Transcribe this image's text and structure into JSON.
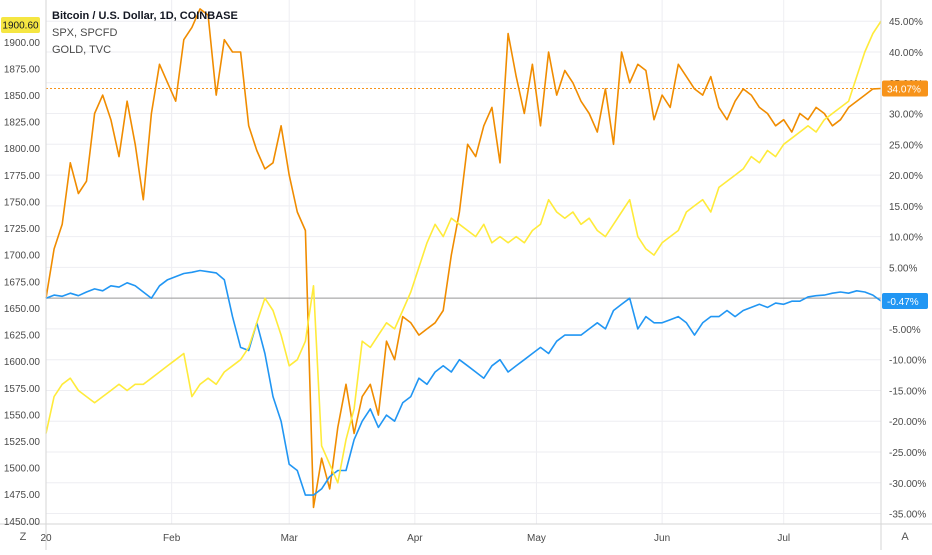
{
  "chart_data": {
    "type": "line",
    "legend": [
      "Bitcoin / U.S. Dollar, 1D, COINBASE",
      "SPX, SPCFD",
      "GOLD, TVC"
    ],
    "left_axis": {
      "ticks": [
        "1450.00",
        "1475.00",
        "1500.00",
        "1525.00",
        "1550.00",
        "1575.00",
        "1600.00",
        "1625.00",
        "1650.00",
        "1675.00",
        "1700.00",
        "1725.00",
        "1750.00",
        "1775.00",
        "1800.00",
        "1825.00",
        "1850.00",
        "1875.00",
        "1900.00"
      ],
      "range": [
        1447,
        1928
      ],
      "current_label": "1900.60",
      "current_color": "#f5e642"
    },
    "right_axis": {
      "ticks": [
        "45.00%",
        "40.00%",
        "35.00%",
        "30.00%",
        "25.00%",
        "20.00%",
        "15.00%",
        "10.00%",
        "5.00%",
        "0.00%",
        "-5.00%",
        "-10.00%",
        "-15.00%",
        "-20.00%",
        "-25.00%",
        "-30.00%",
        "-35.00%"
      ],
      "range": [
        -36.7,
        46.5
      ],
      "badges": [
        {
          "text": "34.07%",
          "value": 34.07,
          "color": "#f7931a"
        },
        {
          "text": "-0.47%",
          "value": -0.47,
          "color": "#2196f3"
        }
      ]
    },
    "x_axis": {
      "ticks": [
        {
          "label": "20",
          "day": 0
        },
        {
          "label": "Feb",
          "day": 31
        },
        {
          "label": "Mar",
          "day": 60
        },
        {
          "label": "Apr",
          "day": 91
        },
        {
          "label": "May",
          "day": 121
        },
        {
          "label": "Jun",
          "day": 152
        },
        {
          "label": "Jul",
          "day": 182
        }
      ],
      "range": [
        0,
        206
      ]
    },
    "reference_lines": [
      {
        "value": 34.07,
        "color": "#f7931a",
        "style": "dotted"
      },
      {
        "value": 0,
        "color": "#999999",
        "style": "solid"
      }
    ],
    "series": [
      {
        "name": "Bitcoin / U.S. Dollar, 1D, COINBASE",
        "color": "#f08c00",
        "x": [
          0,
          2,
          4,
          6,
          8,
          10,
          12,
          14,
          16,
          18,
          20,
          22,
          24,
          26,
          28,
          30,
          32,
          34,
          36,
          38,
          40,
          42,
          44,
          46,
          48,
          50,
          52,
          54,
          56,
          58,
          60,
          62,
          64,
          66,
          68,
          70,
          72,
          74,
          76,
          78,
          80,
          82,
          84,
          86,
          88,
          90,
          92,
          94,
          96,
          98,
          100,
          102,
          104,
          106,
          108,
          110,
          112,
          114,
          116,
          118,
          120,
          122,
          124,
          126,
          128,
          130,
          132,
          134,
          136,
          138,
          140,
          142,
          144,
          146,
          148,
          150,
          152,
          154,
          156,
          158,
          160,
          162,
          164,
          166,
          168,
          170,
          172,
          174,
          176,
          178,
          180,
          182,
          184,
          186,
          188,
          190,
          192,
          194,
          196,
          198,
          200,
          202,
          204,
          206
        ],
        "values": [
          0,
          8,
          12,
          22,
          17,
          19,
          30,
          33,
          29,
          23,
          32,
          25,
          16,
          30,
          38,
          35,
          32,
          42,
          44,
          47,
          46,
          33,
          42,
          40,
          40,
          28,
          24,
          21,
          22,
          28,
          20,
          14,
          11,
          -34,
          -26,
          -31,
          -21,
          -14,
          -22,
          -16,
          -14,
          -19,
          -7,
          -10,
          -3,
          -4,
          -6,
          -5,
          -4,
          -2,
          7,
          14,
          25,
          23,
          28,
          31,
          22,
          43,
          36,
          30,
          38,
          28,
          40,
          33,
          37,
          35,
          32,
          30,
          27,
          34,
          25,
          40,
          35,
          38,
          37,
          29,
          33,
          31,
          38,
          36,
          34,
          33,
          36,
          31,
          29,
          32,
          34,
          33,
          31,
          30,
          28,
          29,
          27,
          30,
          29,
          31,
          30,
          28,
          29,
          31,
          32,
          33,
          34,
          34.07
        ]
      },
      {
        "name": "SPX, SPCFD",
        "color": "#2196f3",
        "x": [
          0,
          2,
          4,
          6,
          8,
          10,
          12,
          14,
          16,
          18,
          20,
          22,
          24,
          26,
          28,
          30,
          32,
          34,
          36,
          38,
          40,
          42,
          44,
          46,
          48,
          50,
          52,
          54,
          56,
          58,
          60,
          62,
          64,
          66,
          68,
          70,
          72,
          74,
          76,
          78,
          80,
          82,
          84,
          86,
          88,
          90,
          92,
          94,
          96,
          98,
          100,
          102,
          104,
          106,
          108,
          110,
          112,
          114,
          116,
          118,
          120,
          122,
          124,
          126,
          128,
          130,
          132,
          134,
          136,
          138,
          140,
          142,
          144,
          146,
          148,
          150,
          152,
          154,
          156,
          158,
          160,
          162,
          164,
          166,
          168,
          170,
          172,
          174,
          176,
          178,
          180,
          182,
          184,
          186,
          188,
          190,
          192,
          194,
          196,
          198,
          200,
          202,
          204,
          206
        ],
        "values": [
          0,
          0.5,
          0.3,
          0.8,
          0.4,
          1,
          1.5,
          1.2,
          2,
          1.8,
          2.5,
          2,
          1,
          0,
          2,
          3,
          3.5,
          4,
          4.2,
          4.5,
          4.3,
          4.1,
          3,
          -3,
          -8,
          -8.5,
          -4,
          -9,
          -16,
          -20,
          -27,
          -28,
          -32,
          -32,
          -31,
          -29,
          -28,
          -28,
          -23,
          -20,
          -18,
          -21,
          -19,
          -20,
          -17,
          -16,
          -13,
          -14,
          -12,
          -11,
          -12,
          -10,
          -11,
          -12,
          -13,
          -11,
          -10,
          -12,
          -11,
          -10,
          -9,
          -8,
          -9,
          -7,
          -6,
          -6,
          -6,
          -5,
          -4,
          -5,
          -2,
          -1,
          0,
          -5,
          -3,
          -4,
          -4,
          -3.5,
          -3,
          -4,
          -6,
          -4,
          -3,
          -3,
          -2,
          -3,
          -2,
          -1.5,
          -1,
          -1.5,
          -0.8,
          -1,
          -0.5,
          -0.5,
          0.2,
          0.4,
          0.5,
          0.8,
          1,
          0.8,
          1.2,
          1,
          0.5,
          -0.47
        ]
      },
      {
        "name": "GOLD, TVC",
        "color": "#ffeb3b",
        "x": [
          0,
          2,
          4,
          6,
          8,
          10,
          12,
          14,
          16,
          18,
          20,
          22,
          24,
          26,
          28,
          30,
          32,
          34,
          36,
          38,
          40,
          42,
          44,
          46,
          48,
          50,
          52,
          54,
          56,
          58,
          60,
          62,
          64,
          66,
          68,
          70,
          72,
          74,
          76,
          78,
          80,
          82,
          84,
          86,
          88,
          90,
          92,
          94,
          96,
          98,
          100,
          102,
          104,
          106,
          108,
          110,
          112,
          114,
          116,
          118,
          120,
          122,
          124,
          126,
          128,
          130,
          132,
          134,
          136,
          138,
          140,
          142,
          144,
          146,
          148,
          150,
          152,
          154,
          156,
          158,
          160,
          162,
          164,
          166,
          168,
          170,
          172,
          174,
          176,
          178,
          180,
          182,
          184,
          186,
          188,
          190,
          192,
          194,
          196,
          198,
          200,
          202,
          204,
          206
        ],
        "values": [
          -22,
          -16,
          -14,
          -13,
          -15,
          -16,
          -17,
          -16,
          -15,
          -14,
          -15,
          -14,
          -14,
          -13,
          -12,
          -11,
          -10,
          -9,
          -16,
          -14,
          -13,
          -14,
          -12,
          -11,
          -10,
          -8,
          -4,
          0,
          -2,
          -6,
          -11,
          -10,
          -7,
          2,
          -24,
          -27,
          -30,
          -23,
          -18,
          -7,
          -8,
          -6,
          -4,
          -5,
          -2,
          1,
          5,
          9,
          12,
          10,
          13,
          12,
          11,
          10,
          12,
          9,
          10,
          9,
          10,
          9,
          11,
          12,
          16,
          14,
          13,
          14,
          12,
          13,
          11,
          10,
          12,
          14,
          16,
          10,
          8,
          7,
          9,
          10,
          11,
          14,
          15,
          16,
          14,
          18,
          19,
          20,
          21,
          23,
          22,
          24,
          23,
          25,
          26,
          27,
          28,
          27,
          29,
          30,
          31,
          32,
          36,
          40,
          43,
          45
        ]
      }
    ]
  }
}
